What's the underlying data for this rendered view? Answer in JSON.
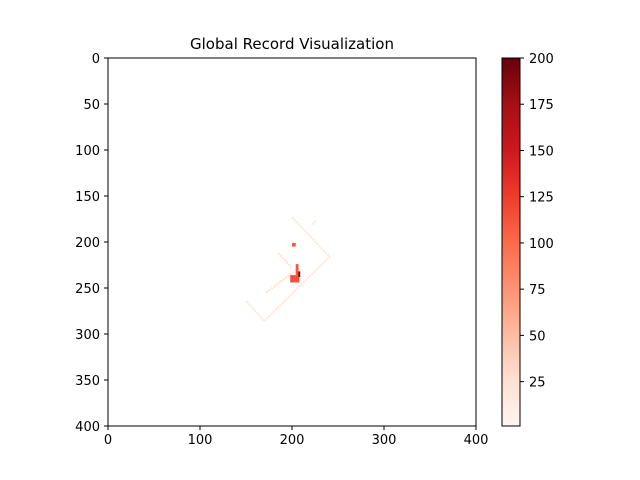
{
  "chart_data": {
    "type": "heatmap",
    "title": "Global Record Visualization",
    "xlabel": "",
    "ylabel": "",
    "xlim": [
      0,
      400
    ],
    "ylim": [
      400,
      0
    ],
    "x_ticks": [
      0,
      100,
      200,
      300,
      400
    ],
    "y_ticks": [
      0,
      50,
      100,
      150,
      200,
      250,
      300,
      350,
      400
    ],
    "colormap": "Reds",
    "colormap_stops": [
      "#fff5f0",
      "#fee0d2",
      "#fcbba1",
      "#fc9272",
      "#fb6a4a",
      "#ef3b2c",
      "#cb181d",
      "#a50f15",
      "#67000d"
    ],
    "colorbar": {
      "min": 1,
      "max": 200,
      "ticks": [
        25,
        50,
        75,
        100,
        125,
        150,
        175,
        200
      ]
    },
    "grid": false,
    "cells": [
      {
        "x": 200,
        "y": 201,
        "w": 4,
        "h": 4,
        "value": 110
      },
      {
        "x": 198,
        "y": 236,
        "w": 10,
        "h": 8,
        "value": 115
      },
      {
        "x": 204,
        "y": 224,
        "w": 3,
        "h": 12,
        "value": 110
      },
      {
        "x": 207,
        "y": 232,
        "w": 2,
        "h": 6,
        "value": 200
      }
    ],
    "paths": [
      {
        "value": 18,
        "points": [
          [
            200,
            173
          ],
          [
            241,
            216
          ],
          [
            170,
            286
          ],
          [
            150,
            264
          ]
        ]
      },
      {
        "value": 22,
        "points": [
          [
            172,
            255
          ],
          [
            205,
            230
          ]
        ]
      },
      {
        "value": 20,
        "points": [
          [
            185,
            212
          ],
          [
            200,
            228
          ]
        ]
      },
      {
        "value": 15,
        "points": [
          [
            222,
            181
          ],
          [
            226,
            177
          ]
        ]
      }
    ]
  }
}
